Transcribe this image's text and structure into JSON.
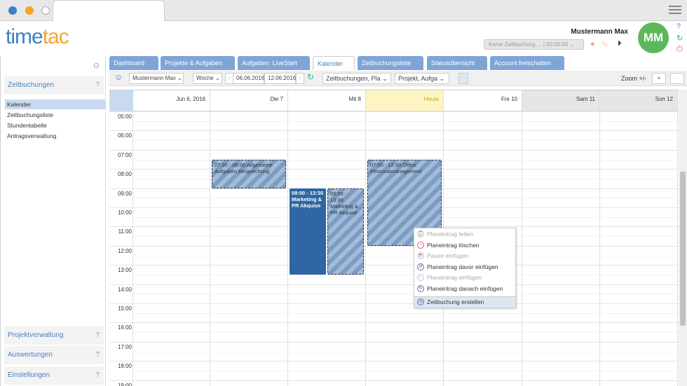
{
  "header": {
    "logo_a": "time",
    "logo_b": "tac",
    "logo_prefix": "t",
    "user": "Mustermann Max",
    "avatar": "MM",
    "timer_text": "Keine Zeitbuchung ...",
    "timer_time": "00:00:00"
  },
  "sidebar": {
    "sections": [
      {
        "label": "Zeitbuchungen"
      },
      {
        "label": "Projektverwaltung"
      },
      {
        "label": "Auswertungen"
      },
      {
        "label": "Einstellungen"
      }
    ],
    "items": [
      {
        "label": "Kalender",
        "selected": true
      },
      {
        "label": "Zeitbuchungsliste"
      },
      {
        "label": "Stundentabelle"
      },
      {
        "label": "Antragsverwaltung"
      }
    ]
  },
  "tabs": [
    {
      "label": "Dashboard"
    },
    {
      "label": "Projekte & Aufgaben"
    },
    {
      "label": "Aufgaben: LiveStart"
    },
    {
      "label": "Kalender",
      "active": true
    },
    {
      "label": "Zeitbuchungsliste"
    },
    {
      "label": "Statusübersicht"
    },
    {
      "label": "Account freischalten"
    }
  ],
  "toolbar": {
    "user": "Mustermann Max",
    "view": "Woche",
    "from": "06.06.2016",
    "to": "12.06.2016",
    "filter1": "Zeitbuchungen, Pla",
    "filter2": "Projekt, Aufga",
    "zoom_label": "Zoom +/-",
    "zoom_in": "+",
    "zoom_out": "-"
  },
  "calendar": {
    "days": [
      "Jun 6, 2016",
      "Die 7",
      "Mit 8",
      "Heute",
      "Fre 10",
      "Sam 11",
      "Son 12"
    ],
    "hours": [
      "05:00",
      "06:00",
      "07:00",
      "08:00",
      "09:00",
      "10:00",
      "11:00",
      "12:00",
      "13:00",
      "14:00",
      "15:00",
      "16:00",
      "17:00",
      "18:00",
      "19:00"
    ],
    "events": [
      {
        "day": 1,
        "start": 7.5,
        "end": 9,
        "text": "07:30 - 09:00 Allgemeine Aufgaben Besprechung",
        "style": "striped"
      },
      {
        "day": 2,
        "start": 9,
        "end": 13.5,
        "text": "09:00 - 13:30 Marketing & PR Akquise",
        "style": "solid",
        "half": 0
      },
      {
        "day": 2,
        "start": 9,
        "end": 13.5,
        "text": "09:00 - 13:30 Marketing & PR Akquise",
        "style": "striped",
        "half": 1
      },
      {
        "day": 3,
        "start": 7.5,
        "end": 12,
        "text": "07:30 - 12:00 Office Personalmanagement",
        "style": "striped"
      }
    ]
  },
  "context_menu": [
    {
      "label": "Planeintrag teilen",
      "disabled": true
    },
    {
      "label": "Planeintrag löschen"
    },
    {
      "label": "Pause einfügen",
      "disabled": true
    },
    {
      "label": "Planeintrag davor einfügen"
    },
    {
      "label": "Planeintrag einfügen",
      "disabled": true
    },
    {
      "label": "Planeintrag danach einfügen"
    },
    {
      "label": "Zeitbuchung erstellen",
      "highlighted": true
    }
  ],
  "colors": {
    "accent": "#4a7fc1",
    "tab": "#7ea5d6",
    "today": "#fff5c2",
    "event_solid": "#2f66a3",
    "avatar": "#5cb85c"
  }
}
